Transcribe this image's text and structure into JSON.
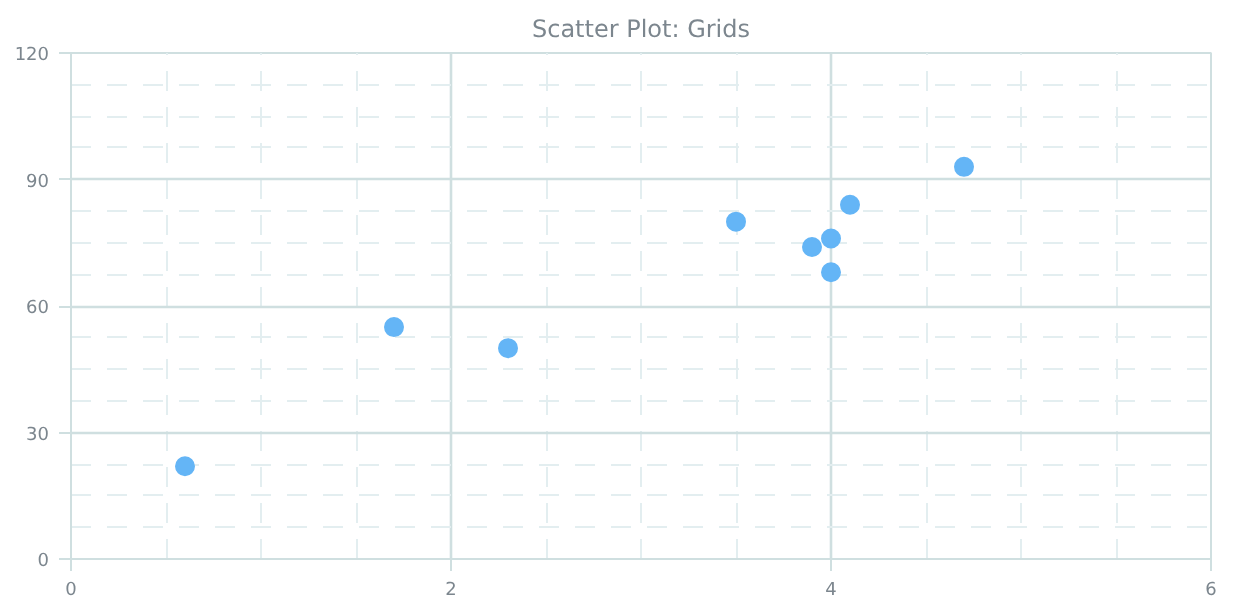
{
  "chart_data": {
    "type": "scatter",
    "title": "Scatter Plot: Grids",
    "x": [
      0.6,
      1.7,
      2.3,
      3.5,
      3.9,
      4.0,
      4.0,
      4.1,
      4.7
    ],
    "series": [
      {
        "color": "#64b5f6",
        "values": [
          22,
          55,
          50,
          80,
          74,
          76,
          68,
          84,
          93
        ]
      }
    ],
    "xlim": [
      0,
      6
    ],
    "xticks": [
      0,
      2,
      4,
      6
    ],
    "ylim": [
      0,
      120
    ],
    "yticks": [
      0,
      30,
      60,
      90,
      120
    ],
    "grid": true,
    "marker": "circle"
  }
}
